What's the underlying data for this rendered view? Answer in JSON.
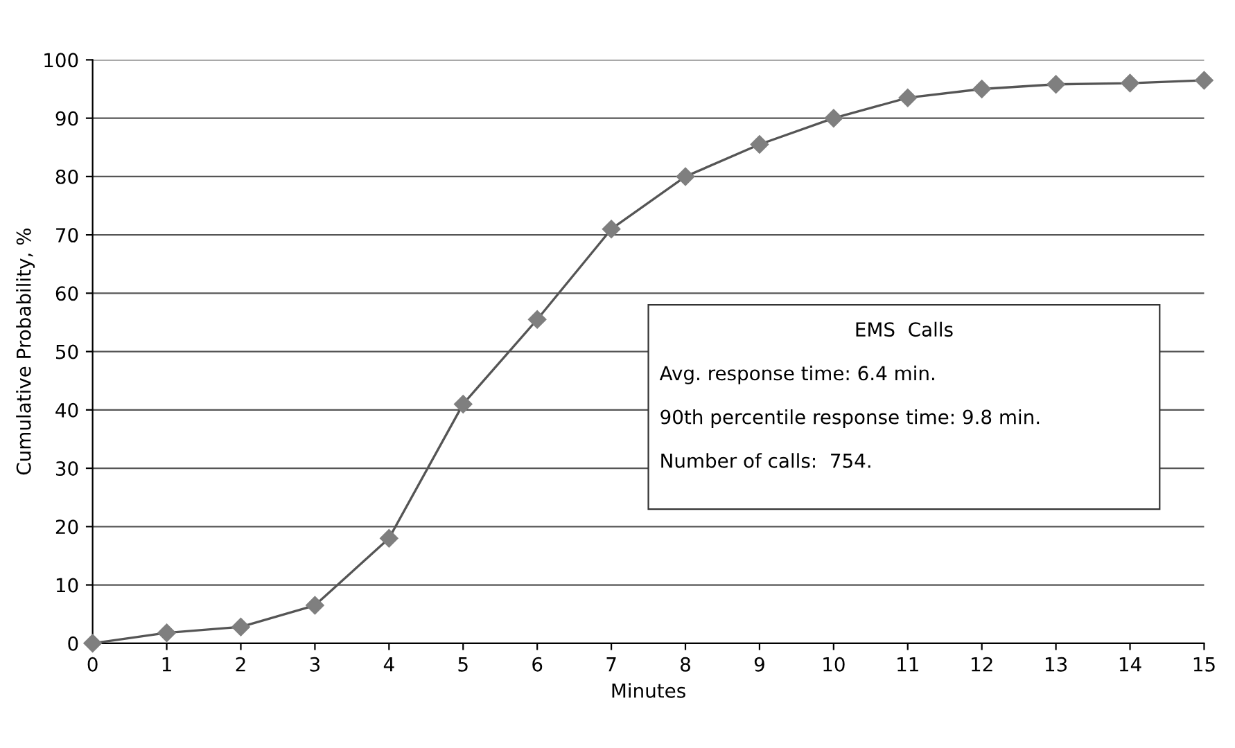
{
  "chart_data": {
    "type": "line",
    "xlabel": "Minutes",
    "ylabel": "Cumulative Probability, %",
    "x": [
      0,
      1,
      2,
      3,
      4,
      5,
      6,
      7,
      8,
      9,
      10,
      11,
      12,
      13,
      14,
      15
    ],
    "series": [
      {
        "color": "#7f7f7f",
        "values": [
          0,
          1.8,
          2.8,
          6.5,
          18,
          41,
          55.5,
          71,
          80,
          85.5,
          90,
          93.5,
          95,
          95.8,
          96,
          96.5
        ]
      }
    ],
    "xlim": [
      0,
      15
    ],
    "xticks": [
      0,
      1,
      2,
      3,
      4,
      5,
      6,
      7,
      8,
      9,
      10,
      11,
      12,
      13,
      14,
      15
    ],
    "ylim": [
      0,
      100
    ],
    "yticks": [
      0,
      10,
      20,
      30,
      40,
      50,
      60,
      70,
      80,
      90,
      100
    ],
    "grid": "y",
    "marker": "diamond",
    "line_style": "solid",
    "annotations": [
      "EMS  Calls",
      "Avg. response time: 6.4 min.",
      "90th percentile response time: 9.8 min.",
      "Number of calls:  754."
    ]
  }
}
